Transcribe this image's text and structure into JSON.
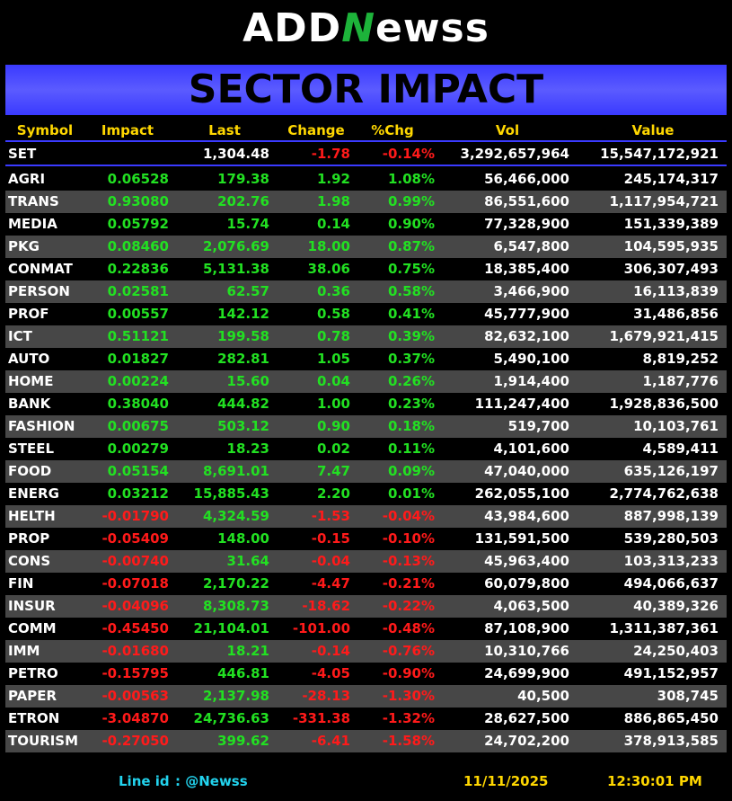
{
  "logo": {
    "a": "ADD",
    "b": "N",
    "c": "ewss"
  },
  "title": "SECTOR IMPACT",
  "table": {
    "header": [
      "Symbol",
      "Impact",
      "Last",
      "Change",
      "%Chg",
      "Vol",
      "Value"
    ],
    "index_row": [
      "SET",
      "",
      "1,304.48",
      "-1.78",
      "-0.14%",
      "3,292,657,964",
      "15,547,172,921"
    ],
    "rows": [
      [
        "AGRI",
        "0.06528",
        "179.38",
        "1.92",
        "1.08%",
        "56,466,000",
        "245,174,317"
      ],
      [
        "TRANS",
        "0.93080",
        "202.76",
        "1.98",
        "0.99%",
        "86,551,600",
        "1,117,954,721"
      ],
      [
        "MEDIA",
        "0.05792",
        "15.74",
        "0.14",
        "0.90%",
        "77,328,900",
        "151,339,389"
      ],
      [
        "PKG",
        "0.08460",
        "2,076.69",
        "18.00",
        "0.87%",
        "6,547,800",
        "104,595,935"
      ],
      [
        "CONMAT",
        "0.22836",
        "5,131.38",
        "38.06",
        "0.75%",
        "18,385,400",
        "306,307,493"
      ],
      [
        "PERSON",
        "0.02581",
        "62.57",
        "0.36",
        "0.58%",
        "3,466,900",
        "16,113,839"
      ],
      [
        "PROF",
        "0.00557",
        "142.12",
        "0.58",
        "0.41%",
        "45,777,900",
        "31,486,856"
      ],
      [
        "ICT",
        "0.51121",
        "199.58",
        "0.78",
        "0.39%",
        "82,632,100",
        "1,679,921,415"
      ],
      [
        "AUTO",
        "0.01827",
        "282.81",
        "1.05",
        "0.37%",
        "5,490,100",
        "8,819,252"
      ],
      [
        "HOME",
        "0.00224",
        "15.60",
        "0.04",
        "0.26%",
        "1,914,400",
        "1,187,776"
      ],
      [
        "BANK",
        "0.38040",
        "444.82",
        "1.00",
        "0.23%",
        "111,247,400",
        "1,928,836,500"
      ],
      [
        "FASHION",
        "0.00675",
        "503.12",
        "0.90",
        "0.18%",
        "519,700",
        "10,103,761"
      ],
      [
        "STEEL",
        "0.00279",
        "18.23",
        "0.02",
        "0.11%",
        "4,101,600",
        "4,589,411"
      ],
      [
        "FOOD",
        "0.05154",
        "8,691.01",
        "7.47",
        "0.09%",
        "47,040,000",
        "635,126,197"
      ],
      [
        "ENERG",
        "0.03212",
        "15,885.43",
        "2.20",
        "0.01%",
        "262,055,100",
        "2,774,762,638"
      ],
      [
        "HELTH",
        "-0.01790",
        "4,324.59",
        "-1.53",
        "-0.04%",
        "43,984,600",
        "887,998,139"
      ],
      [
        "PROP",
        "-0.05409",
        "148.00",
        "-0.15",
        "-0.10%",
        "131,591,500",
        "539,280,503"
      ],
      [
        "CONS",
        "-0.00740",
        "31.64",
        "-0.04",
        "-0.13%",
        "45,963,400",
        "103,313,233"
      ],
      [
        "FIN",
        "-0.07018",
        "2,170.22",
        "-4.47",
        "-0.21%",
        "60,079,800",
        "494,066,637"
      ],
      [
        "INSUR",
        "-0.04096",
        "8,308.73",
        "-18.62",
        "-0.22%",
        "4,063,500",
        "40,389,326"
      ],
      [
        "COMM",
        "-0.45450",
        "21,104.01",
        "-101.00",
        "-0.48%",
        "87,108,900",
        "1,311,387,361"
      ],
      [
        "IMM",
        "-0.01680",
        "18.21",
        "-0.14",
        "-0.76%",
        "10,310,766",
        "24,250,403"
      ],
      [
        "PETRO",
        "-0.15795",
        "446.81",
        "-4.05",
        "-0.90%",
        "24,699,900",
        "491,152,957"
      ],
      [
        "PAPER",
        "-0.00563",
        "2,137.98",
        "-28.13",
        "-1.30%",
        "40,500",
        "308,745"
      ],
      [
        "ETRON",
        "-3.04870",
        "24,736.63",
        "-331.38",
        "-1.32%",
        "28,627,500",
        "886,865,450"
      ],
      [
        "TOURISM",
        "-0.27050",
        "399.62",
        "-6.41",
        "-1.58%",
        "24,702,200",
        "378,913,585"
      ]
    ]
  },
  "footer": {
    "line_label": "Line id",
    "line_id": ": @Newss",
    "date": "11/11/2025",
    "time": "12:30:01 PM"
  }
}
